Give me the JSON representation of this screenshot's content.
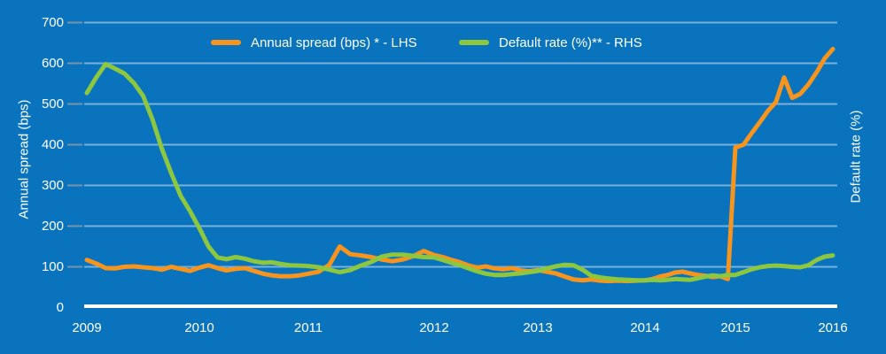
{
  "figure": {
    "background_color": "#0973BE",
    "text_color": "#FFFFFF"
  },
  "legend": [
    {
      "label": "Annual spread (bps) * - LHS",
      "color": "#F7941E"
    },
    {
      "label": "Default rate (%)** - RHS",
      "color": "#8DC63F"
    }
  ],
  "axes": {
    "left_title": "Annual spread (bps)",
    "right_title": "Default rate (%)",
    "left_tick_labels": [
      "700",
      "600",
      "500",
      "400",
      "300",
      "200",
      "100",
      "0"
    ],
    "x_tick_labels": [
      "2009",
      "2010",
      "2011",
      "2012",
      "2013",
      "2014",
      "2015",
      "2016"
    ]
  },
  "chart_data": {
    "type": "line",
    "title": "",
    "x_unit": "time, monthly points from Jan 2009 to Jan 2016",
    "points_per_year": 12,
    "x_start_year": 2009,
    "x_end_year": 2016,
    "x_tick_labels": [
      "2009",
      "2010",
      "2011",
      "2012",
      "2013",
      "2014",
      "2015",
      "2016"
    ],
    "ylabel_left": "Annual spread (bps)",
    "ylabel_right": "Default rate (%)",
    "ylim_left": [
      0,
      700
    ],
    "y_ticks_left": [
      0,
      100,
      200,
      300,
      400,
      500,
      600,
      700
    ],
    "rhs_axis_note": "right axis has no visible numeric tick labels; default-rate series values below are expressed on the left-axis scale exactly as plotted",
    "gridlines": true,
    "legend_position": "top-center",
    "series": [
      {
        "name": "Annual spread (bps) * - LHS",
        "axis": "left",
        "color": "#F7941E",
        "values": [
          117,
          108,
          97,
          96,
          100,
          101,
          99,
          97,
          93,
          100,
          95,
          90,
          98,
          104,
          97,
          91,
          95,
          97,
          90,
          83,
          79,
          77,
          77,
          79,
          83,
          88,
          105,
          150,
          131,
          128,
          124,
          118,
          114,
          118,
          126,
          139,
          129,
          124,
          117,
          111,
          103,
          98,
          101,
          96,
          94,
          97,
          91,
          89,
          92,
          88,
          84,
          76,
          69,
          67,
          69,
          66,
          65,
          66,
          65,
          66,
          67,
          70,
          76,
          80,
          86,
          88,
          84,
          80,
          78,
          75,
          77,
          70,
          393,
          400,
          428,
          455,
          483,
          505,
          565,
          515,
          525,
          548,
          578,
          612,
          635
        ]
      },
      {
        "name": "Default rate (%)** - RHS",
        "axis": "right",
        "color": "#8DC63F",
        "values": [
          527,
          565,
          598,
          587,
          575,
          552,
          520,
          462,
          390,
          330,
          275,
          237,
          195,
          150,
          123,
          119,
          124,
          120,
          114,
          110,
          111,
          107,
          104,
          103,
          102,
          99,
          93,
          87,
          92,
          103,
          112,
          125,
          130,
          130,
          127,
          124,
          123,
          117,
          110,
          104,
          96,
          89,
          83,
          80,
          80,
          82,
          84,
          87,
          90,
          96,
          101,
          105,
          104,
          93,
          78,
          74,
          71,
          69,
          68,
          67,
          67,
          68,
          67,
          68,
          70,
          69,
          68,
          72,
          76,
          79,
          77,
          80,
          80,
          87,
          94,
          99,
          102,
          103,
          102,
          100,
          99,
          104,
          117,
          125,
          128
        ]
      }
    ]
  }
}
